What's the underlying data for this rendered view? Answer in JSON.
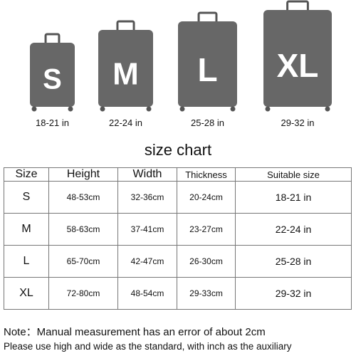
{
  "suitcases": [
    {
      "letter": "S",
      "size": "18-21 in"
    },
    {
      "letter": "M",
      "size": "22-24 in"
    },
    {
      "letter": "L",
      "size": "25-28 in"
    },
    {
      "letter": "XL",
      "size": "29-32 in"
    }
  ],
  "title": "size chart",
  "table": {
    "header": [
      "Size",
      "Height",
      "Width",
      "Thickness",
      "Suitable size"
    ],
    "rows": [
      [
        "S",
        "48-53cm",
        "32-36cm",
        "20-24cm",
        "18-21 in"
      ],
      [
        "M",
        "58-63cm",
        "37-41cm",
        "23-27cm",
        "22-24 in"
      ],
      [
        "L",
        "65-70cm",
        "42-47cm",
        "26-30cm",
        "25-28 in"
      ],
      [
        "XL",
        "72-80cm",
        "48-54cm",
        "29-33cm",
        "29-32 in"
      ]
    ]
  },
  "notes": [
    "Note：Manual measurement has an error of about 2cm",
    "Please use high and wide as the standard, with inch as the auxiliary"
  ]
}
